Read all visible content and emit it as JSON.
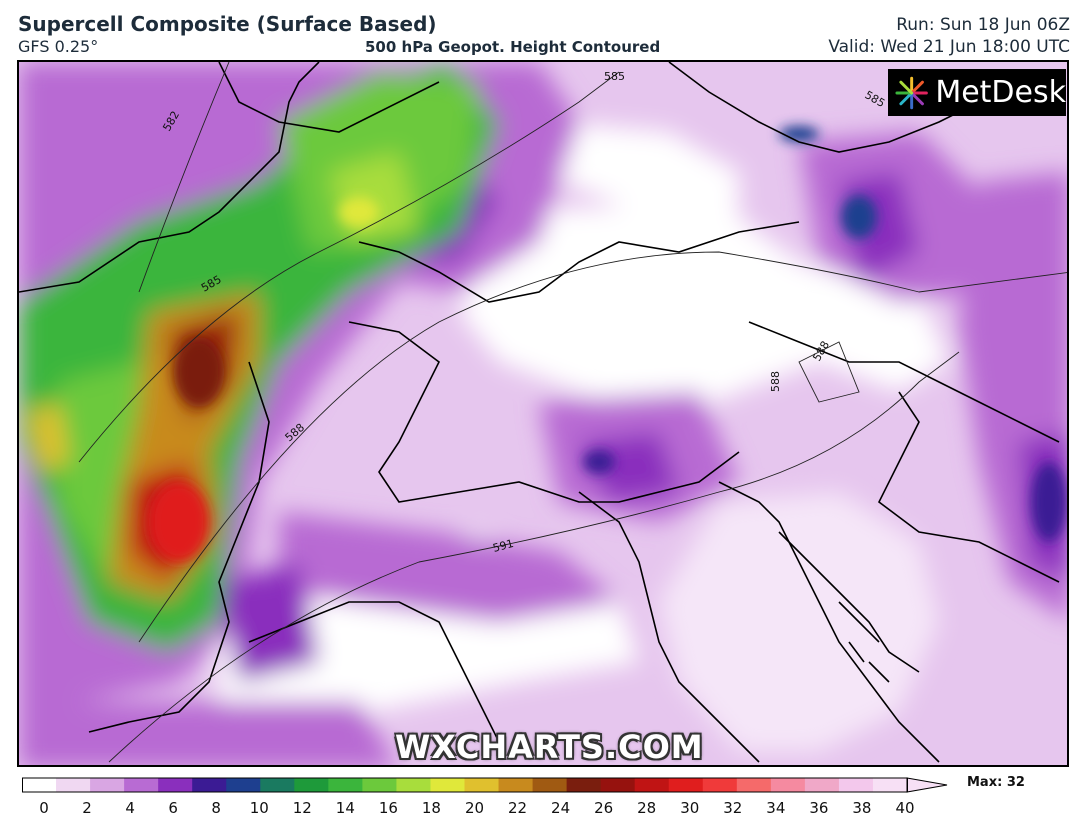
{
  "header": {
    "title": "Supercell Composite (Surface Based)",
    "model": "GFS 0.25°",
    "center_title": "500 hPa Geopot. Height Contoured",
    "run": "Run: Sun 18 Jun 06Z",
    "valid": "Valid: Wed 21 Jun 18:00 UTC"
  },
  "logo": {
    "text": "MetDesk"
  },
  "watermark": "WXCHARTS.COM",
  "contour_labels": [
    "582",
    "585",
    "585",
    "585",
    "588",
    "588",
    "588",
    "591"
  ],
  "legend": {
    "max_label": "Max: 32",
    "ticks": [
      "0",
      "2",
      "4",
      "6",
      "8",
      "10",
      "12",
      "14",
      "16",
      "18",
      "20",
      "22",
      "24",
      "26",
      "28",
      "30",
      "32",
      "34",
      "36",
      "38",
      "40"
    ],
    "colors": [
      "#ffffff",
      "#f0d8f2",
      "#d9a6e3",
      "#b86bd3",
      "#8a2fbd",
      "#3b1b94",
      "#1e3f8f",
      "#1a7a60",
      "#1e9a3a",
      "#3bb53c",
      "#6cc93c",
      "#a8dd3c",
      "#e0e83a",
      "#e0c02e",
      "#c88a1e",
      "#a05a12",
      "#7a1e0e",
      "#96120e",
      "#c01414",
      "#e01e1e",
      "#f03a3a",
      "#f56a6a",
      "#f58aa0",
      "#f0a8c8",
      "#f3c8ec",
      "#f7e0f5"
    ]
  }
}
